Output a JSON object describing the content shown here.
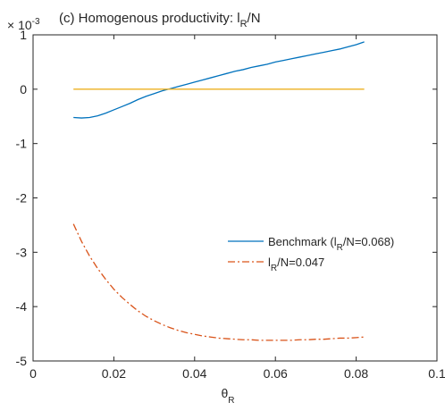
{
  "chart_data": {
    "type": "line",
    "title": "(c) Homogenous productivity: ",
    "title_math": {
      "base": "l",
      "sub": "R",
      "rest": "/N"
    },
    "exponent_label": {
      "prefix": "× 10",
      "power": "-3"
    },
    "xlabel": {
      "base": "θ",
      "sub": "R"
    },
    "ylabel": "",
    "xlim": [
      0,
      0.1
    ],
    "ylim": [
      -5,
      1
    ],
    "y_scale_factor": 0.001,
    "xticks": [
      0,
      0.02,
      0.04,
      0.06,
      0.08,
      0.1
    ],
    "xtick_labels": [
      "0",
      "0.02",
      "0.04",
      "0.06",
      "0.08",
      "0.1"
    ],
    "yticks": [
      -5,
      -4,
      -3,
      -2,
      -1,
      0,
      1
    ],
    "ytick_labels": [
      "-5",
      "-4",
      "-3",
      "-2",
      "-1",
      "0",
      "1"
    ],
    "grid": false,
    "legend_position": "center-right",
    "series": [
      {
        "name": "Benchmark (l_R/N=0.068)",
        "legend": {
          "prefix": "Benchmark (l",
          "sub": "R",
          "suffix": "/N=0.068)"
        },
        "color": "#0072BD",
        "style": "solid",
        "x": [
          0.01,
          0.012,
          0.014,
          0.016,
          0.018,
          0.02,
          0.022,
          0.024,
          0.026,
          0.028,
          0.03,
          0.032,
          0.034,
          0.036,
          0.038,
          0.04,
          0.042,
          0.044,
          0.046,
          0.048,
          0.05,
          0.052,
          0.054,
          0.056,
          0.058,
          0.06,
          0.062,
          0.064,
          0.066,
          0.068,
          0.07,
          0.072,
          0.074,
          0.076,
          0.078,
          0.08,
          0.082
        ],
        "y": [
          -0.52,
          -0.53,
          -0.52,
          -0.49,
          -0.44,
          -0.38,
          -0.32,
          -0.26,
          -0.19,
          -0.13,
          -0.08,
          -0.03,
          0.01,
          0.05,
          0.09,
          0.13,
          0.17,
          0.21,
          0.25,
          0.29,
          0.33,
          0.36,
          0.4,
          0.43,
          0.46,
          0.5,
          0.53,
          0.56,
          0.59,
          0.62,
          0.65,
          0.68,
          0.71,
          0.74,
          0.78,
          0.82,
          0.87
        ]
      },
      {
        "name": "",
        "show_in_legend": false,
        "color": "#EDB120",
        "style": "solid",
        "x": [
          0.01,
          0.082
        ],
        "y": [
          0.0,
          0.0
        ]
      },
      {
        "name": "l_R/N=0.047",
        "legend": {
          "prefix": "l",
          "sub": "R",
          "suffix": "/N=0.047"
        },
        "color": "#D95319",
        "style": "dashdot",
        "x": [
          0.01,
          0.012,
          0.014,
          0.016,
          0.018,
          0.02,
          0.022,
          0.024,
          0.026,
          0.028,
          0.03,
          0.032,
          0.034,
          0.036,
          0.038,
          0.04,
          0.042,
          0.044,
          0.046,
          0.048,
          0.05,
          0.052,
          0.054,
          0.056,
          0.058,
          0.06,
          0.062,
          0.064,
          0.066,
          0.068,
          0.07,
          0.072,
          0.074,
          0.076,
          0.078,
          0.08,
          0.082
        ],
        "y": [
          -2.48,
          -2.8,
          -3.07,
          -3.3,
          -3.5,
          -3.68,
          -3.83,
          -3.96,
          -4.08,
          -4.18,
          -4.26,
          -4.33,
          -4.39,
          -4.44,
          -4.48,
          -4.51,
          -4.54,
          -4.56,
          -4.58,
          -4.59,
          -4.6,
          -4.61,
          -4.61,
          -4.62,
          -4.62,
          -4.62,
          -4.62,
          -4.62,
          -4.61,
          -4.61,
          -4.6,
          -4.6,
          -4.59,
          -4.58,
          -4.58,
          -4.57,
          -4.56
        ]
      }
    ]
  }
}
